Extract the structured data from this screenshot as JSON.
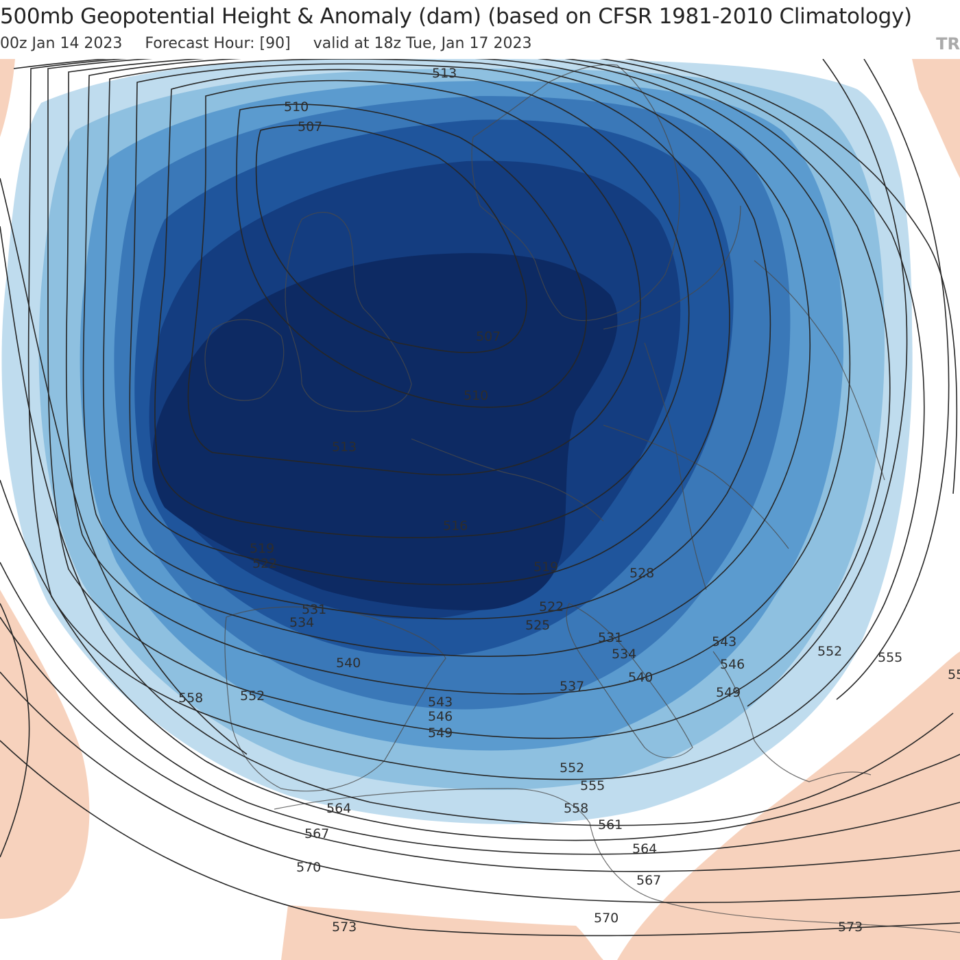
{
  "header": {
    "title": "500mb Geopotential Height & Anomaly (dam) (based on CFSR 1981-2010 Climatology)",
    "init": "00z Jan 14 2023",
    "forecast_hour": "Forecast Hour: [90]",
    "valid": "valid at 18z Tue, Jan 17 2023",
    "logo": "TR"
  },
  "colors": {
    "anomaly_neg_1": "#bfdcee",
    "anomaly_neg_2": "#8ec0e0",
    "anomaly_neg_3": "#5b9bcf",
    "anomaly_neg_4": "#3a78b8",
    "anomaly_neg_5": "#1f559c",
    "anomaly_neg_6": "#143d80",
    "anomaly_neg_7": "#0d2a63",
    "anomaly_pos_1": "#f7d2bd",
    "contour": "#262626",
    "borders": "#5a5a5a"
  },
  "contour_labels": {
    "l513a": "513",
    "l510a": "510",
    "l507a": "507",
    "l507b": "507",
    "l510b": "510",
    "l513b": "513",
    "l516": "516",
    "l519a": "519",
    "l522a": "522",
    "l519b": "519",
    "l528": "528",
    "l531a": "531",
    "l534a": "534",
    "l522b": "522",
    "l525": "525",
    "l531b": "531",
    "l534b": "534",
    "l540a": "540",
    "l540b": "540",
    "l537": "537",
    "l543a": "543",
    "l546a": "546",
    "l549a": "549",
    "l543b": "543",
    "l546b": "546",
    "l549b": "549",
    "l552a": "552",
    "l552b": "552",
    "l555a": "555",
    "l558a": "558",
    "l552c": "552",
    "l555b": "555",
    "l558b": "558",
    "l561": "561",
    "l564a": "564",
    "l564b": "564",
    "l567a": "567",
    "l567b": "567",
    "l570a": "570",
    "l570b": "570",
    "l573a": "573",
    "l573b": "573",
    "l55c": "55"
  }
}
